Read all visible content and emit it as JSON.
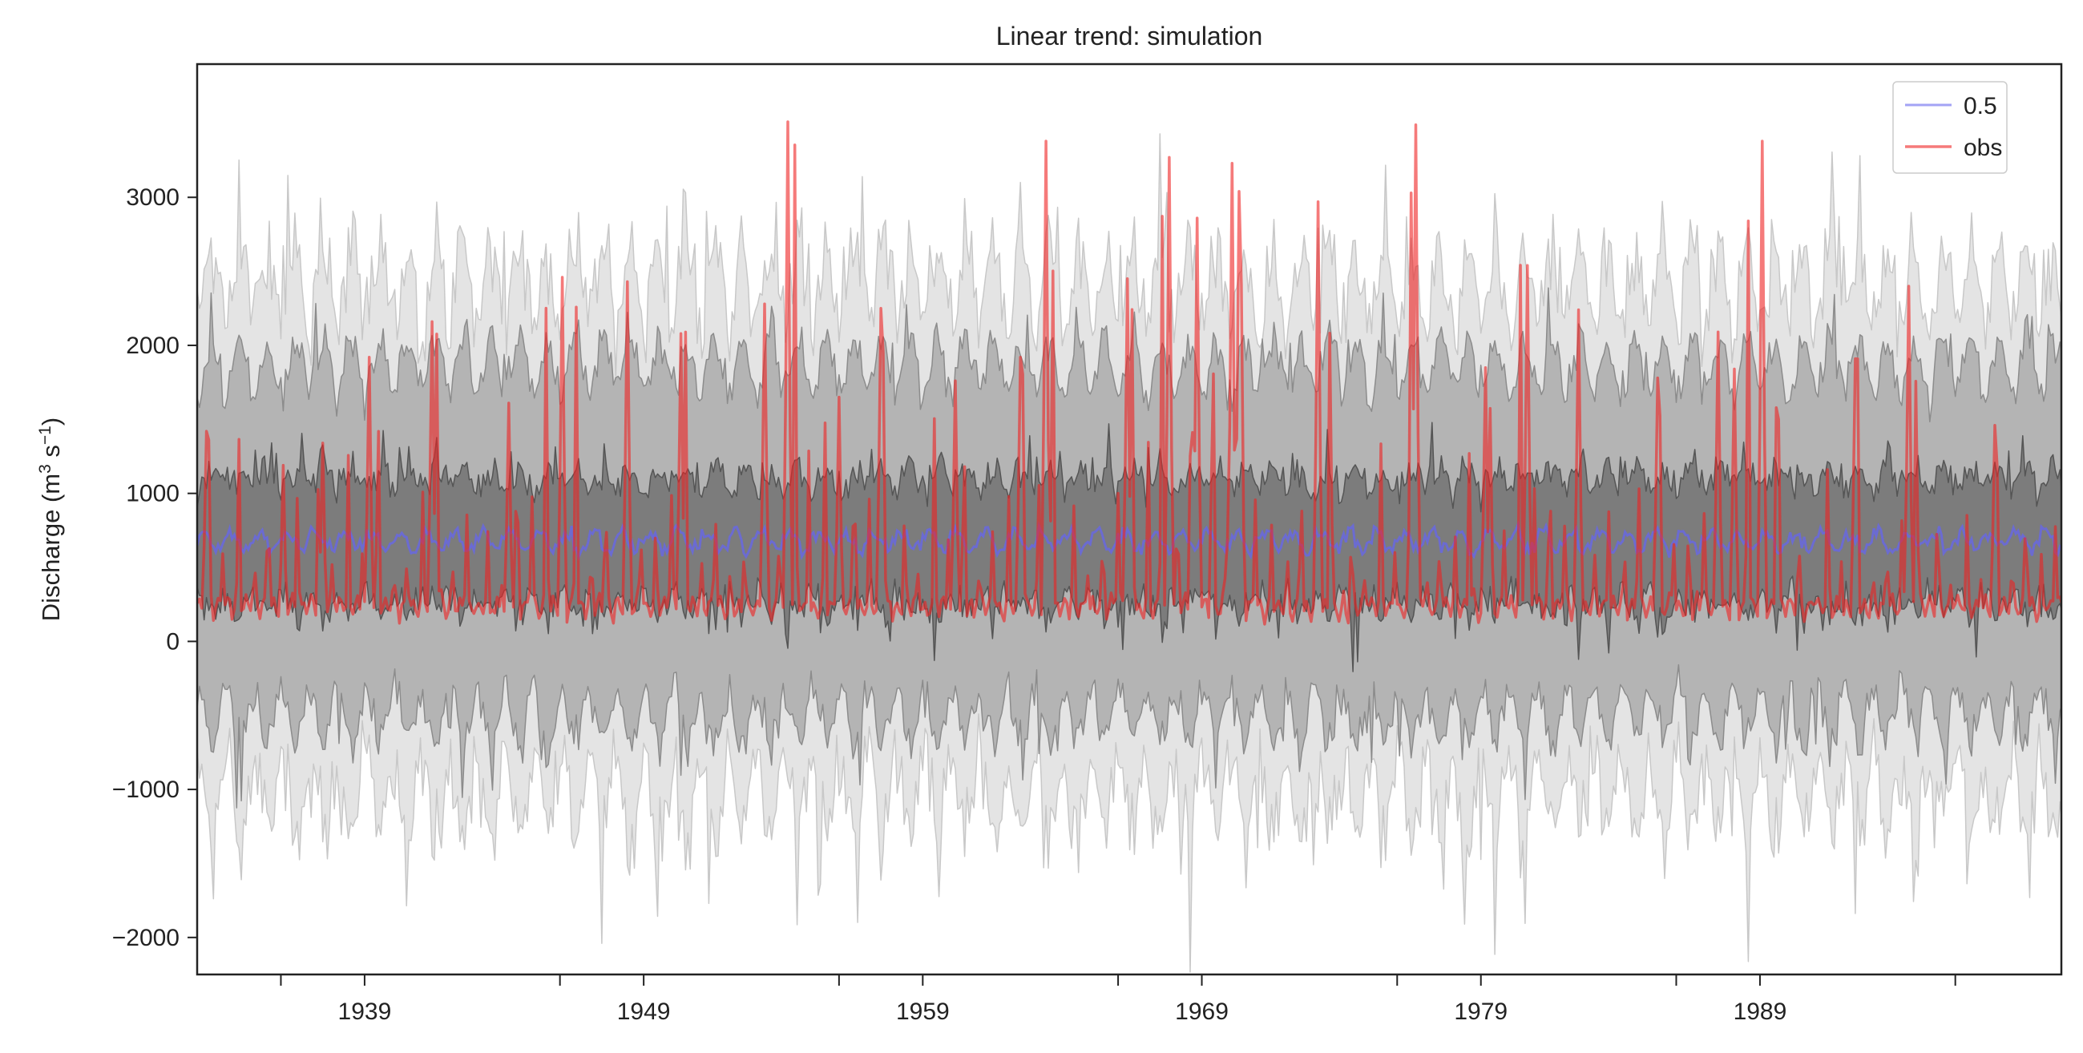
{
  "chart_data": {
    "type": "line",
    "title": "Linear trend: simulation",
    "xlabel": "",
    "ylabel_parts": [
      "Discharge (m",
      "3",
      " s",
      "−1",
      ")"
    ],
    "xlim": [
      1933,
      1999.8
    ],
    "ylim": [
      -2250,
      3900
    ],
    "yticks": [
      -2000,
      -1000,
      0,
      1000,
      2000,
      3000
    ],
    "ytick_labels": [
      "−2000",
      "−1000",
      "0",
      "1000",
      "2000",
      "3000"
    ],
    "xticks_major": [
      1939,
      1949,
      1959,
      1969,
      1979,
      1989
    ],
    "xtick_labels": [
      "1939",
      "1949",
      "1959",
      "1969",
      "1979",
      "1989"
    ],
    "xticks_minor": [
      1936,
      1946,
      1956,
      1966,
      1976,
      1986,
      1996
    ],
    "grid": false,
    "legend_position": "top-right",
    "colors": {
      "median": "#6666ee",
      "obs": "#ee2222",
      "band_outer": "#e4e4e4",
      "band_90": "#b4b4b4",
      "band_50": "#7c7c7c",
      "band_edge_outer": "#c8c8c8",
      "band_edge_90": "#8c8c8c",
      "band_edge_50": "#555555"
    },
    "series": [
      {
        "name": "0.5",
        "kind": "median",
        "mean": 680,
        "amplitude": 60,
        "noise": 45
      },
      {
        "name": "obs",
        "kind": "observed",
        "base": 230,
        "annual_peak_typical": 1300,
        "peaks": [
          {
            "year": 1933.3,
            "value": 1420
          },
          {
            "year": 1936.1,
            "value": 1190
          },
          {
            "year": 1937.5,
            "value": 1340
          },
          {
            "year": 1939.2,
            "value": 1920
          },
          {
            "year": 1941.4,
            "value": 2160
          },
          {
            "year": 1944.2,
            "value": 1610
          },
          {
            "year": 1946.1,
            "value": 2460
          },
          {
            "year": 1948.4,
            "value": 2430
          },
          {
            "year": 1950.3,
            "value": 2080
          },
          {
            "year": 1953.3,
            "value": 2280
          },
          {
            "year": 1954.2,
            "value": 3510
          },
          {
            "year": 1956.0,
            "value": 1650
          },
          {
            "year": 1957.5,
            "value": 2250
          },
          {
            "year": 1960.2,
            "value": 1760
          },
          {
            "year": 1962.5,
            "value": 1920
          },
          {
            "year": 1963.4,
            "value": 3380
          },
          {
            "year": 1966.3,
            "value": 2450
          },
          {
            "year": 1967.8,
            "value": 3270
          },
          {
            "year": 1968.8,
            "value": 2860
          },
          {
            "year": 1970.1,
            "value": 3230
          },
          {
            "year": 1970.3,
            "value": 3040
          },
          {
            "year": 1973.2,
            "value": 2970
          },
          {
            "year": 1976.7,
            "value": 3490
          },
          {
            "year": 1979.2,
            "value": 1850
          },
          {
            "year": 1980.7,
            "value": 2540
          },
          {
            "year": 1982.5,
            "value": 2240
          },
          {
            "year": 1985.3,
            "value": 1780
          },
          {
            "year": 1987.5,
            "value": 2090
          },
          {
            "year": 1988.1,
            "value": 1840
          },
          {
            "year": 1989.1,
            "value": 3380
          },
          {
            "year": 1992.4,
            "value": 1910
          },
          {
            "year": 1994.3,
            "value": 2400
          },
          {
            "year": 1997.4,
            "value": 1460
          }
        ]
      }
    ],
    "bands": [
      {
        "kind": "outer",
        "center": 680,
        "half_width": 1720,
        "noise": 230
      },
      {
        "kind": "90",
        "center": 680,
        "half_width": 1180,
        "noise": 120
      },
      {
        "kind": "50",
        "center": 680,
        "half_width": 420,
        "noise": 100
      }
    ],
    "legend": [
      {
        "label": "0.5",
        "color_key": "median"
      },
      {
        "label": "obs",
        "color_key": "obs"
      }
    ]
  }
}
